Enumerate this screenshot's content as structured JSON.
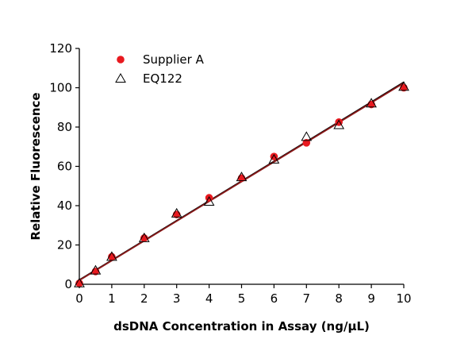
{
  "chart_data": {
    "type": "scatter",
    "xlabel": "dsDNA Concentration in Assay (ng/µL)",
    "ylabel": "Relative Fluorescence",
    "xlim": [
      0,
      10
    ],
    "ylim": [
      0,
      120
    ],
    "x_ticks": [
      0,
      1,
      2,
      3,
      4,
      5,
      6,
      7,
      8,
      9,
      10
    ],
    "y_ticks": [
      0,
      20,
      40,
      60,
      80,
      100,
      120
    ],
    "grid": false,
    "legend_position": "top-left",
    "series": [
      {
        "name": "Supplier A",
        "marker": "filled-circle",
        "color": "#e8191f",
        "points": [
          [
            0,
            0.5
          ],
          [
            0.5,
            6.5
          ],
          [
            1,
            14
          ],
          [
            2,
            23.5
          ],
          [
            3,
            35.5
          ],
          [
            4,
            44
          ],
          [
            5,
            54
          ],
          [
            6,
            65
          ],
          [
            7,
            72
          ],
          [
            8,
            82.5
          ],
          [
            9,
            91.5
          ],
          [
            10,
            100
          ]
        ]
      },
      {
        "name": "EQ122",
        "marker": "open-triangle",
        "color": "#000000",
        "points": [
          [
            0,
            0.5
          ],
          [
            0.5,
            7
          ],
          [
            1,
            14
          ],
          [
            2,
            23.5
          ],
          [
            3,
            36
          ],
          [
            4,
            42
          ],
          [
            5,
            54.5
          ],
          [
            6,
            63.5
          ],
          [
            7,
            75
          ],
          [
            8,
            81
          ],
          [
            9,
            92
          ],
          [
            10,
            100.5
          ]
        ]
      }
    ],
    "fit_lines": [
      {
        "color": "#000000",
        "start": [
          0,
          2.2
        ],
        "end": [
          10,
          102.8
        ]
      },
      {
        "color": "#8b1a1a",
        "start": [
          0,
          2.0
        ],
        "end": [
          10,
          102.4
        ]
      }
    ]
  }
}
